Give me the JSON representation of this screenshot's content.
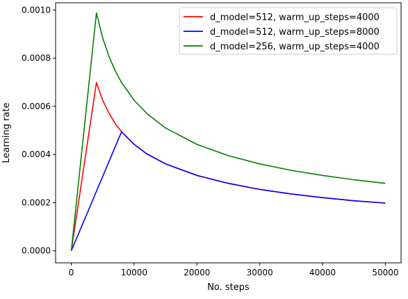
{
  "chart_data": {
    "type": "line",
    "title": "",
    "xlabel": "No. steps",
    "ylabel": "Learning rate",
    "xlim": [
      -2500,
      52500
    ],
    "ylim": [
      -5e-05,
      0.00103
    ],
    "xticks": [
      0,
      10000,
      20000,
      30000,
      40000,
      50000
    ],
    "xtick_labels": [
      "0",
      "10000",
      "20000",
      "30000",
      "40000",
      "50000"
    ],
    "yticks": [
      0,
      0.0002,
      0.0004,
      0.0006,
      0.0008,
      0.001
    ],
    "ytick_labels": [
      "0.0000",
      "0.0002",
      "0.0004",
      "0.0006",
      "0.0008",
      "0.0010"
    ],
    "grid": false,
    "legend_position": "top-right",
    "series": [
      {
        "name": "d_model=512, warm_up_steps=4000",
        "color": "#ff0000",
        "x": [
          0,
          4000,
          5000,
          6000,
          7000,
          8000,
          10000,
          12000,
          15000,
          20000,
          25000,
          30000,
          35000,
          40000,
          45000,
          50000
        ],
        "y": [
          0.0,
          0.000699,
          0.000625,
          0.000571,
          0.000528,
          0.000494,
          0.000442,
          0.000403,
          0.000361,
          0.000313,
          0.00028,
          0.000255,
          0.000236,
          0.000221,
          0.000208,
          0.000198
        ]
      },
      {
        "name": "d_model=512, warm_up_steps=8000",
        "color": "#0000ff",
        "x": [
          0,
          8000,
          10000,
          12000,
          15000,
          20000,
          25000,
          30000,
          35000,
          40000,
          45000,
          50000
        ],
        "y": [
          0.0,
          0.000494,
          0.000442,
          0.000403,
          0.000361,
          0.000313,
          0.00028,
          0.000255,
          0.000236,
          0.000221,
          0.000208,
          0.000198
        ]
      },
      {
        "name": "d_model=256, warm_up_steps=4000",
        "color": "#008000",
        "x": [
          0,
          4000,
          5000,
          6000,
          7000,
          8000,
          10000,
          12000,
          15000,
          20000,
          25000,
          30000,
          35000,
          40000,
          45000,
          50000
        ],
        "y": [
          0.0,
          0.000988,
          0.000884,
          0.000807,
          0.000747,
          0.000699,
          0.000625,
          0.000571,
          0.00051,
          0.000442,
          0.000395,
          0.000361,
          0.000334,
          0.000313,
          0.000295,
          0.00028
        ]
      }
    ]
  }
}
